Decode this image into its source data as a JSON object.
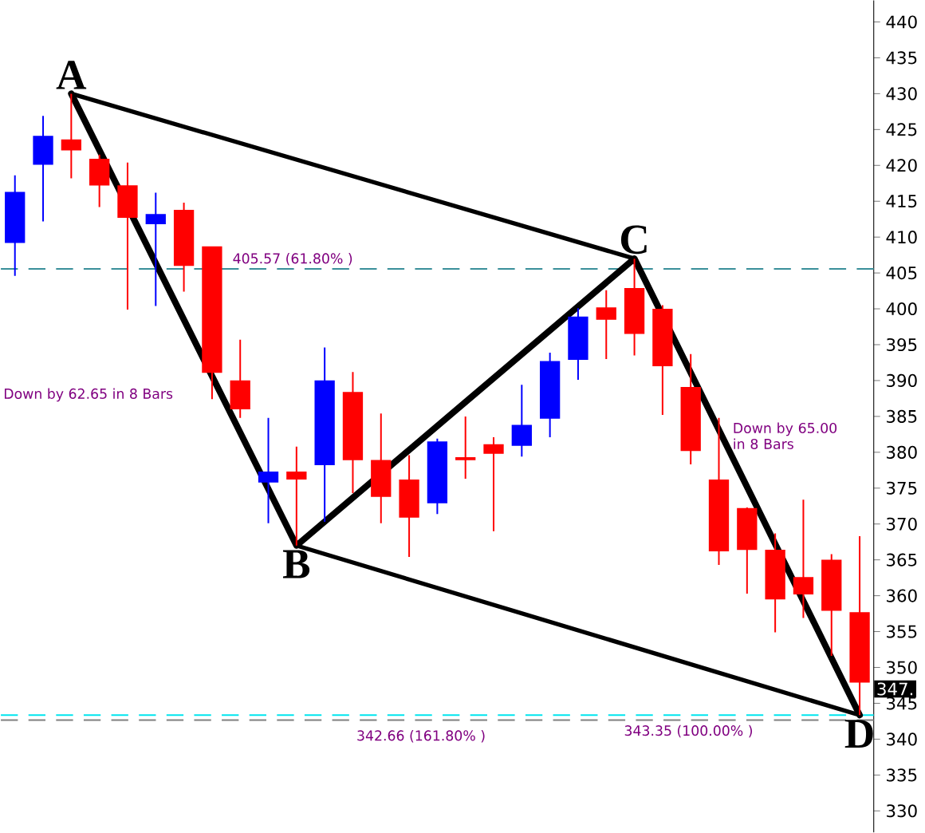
{
  "chart_data": {
    "type": "candlestick",
    "categories": [
      null,
      null,
      null,
      null,
      null,
      null,
      null,
      null,
      null,
      null,
      null,
      null,
      null,
      null,
      null,
      null,
      null,
      null,
      null,
      null,
      null,
      null,
      null,
      null,
      null,
      null,
      null,
      null,
      null,
      null,
      null
    ],
    "ohlc": [
      [
        409.3,
        418.6,
        404.6,
        416.2
      ],
      [
        420.2,
        426.9,
        412.2,
        424.0
      ],
      [
        423.5,
        430.0,
        418.2,
        422.2
      ],
      [
        420.8,
        421.5,
        414.2,
        417.3
      ],
      [
        417.1,
        420.4,
        399.9,
        412.8
      ],
      [
        411.9,
        416.2,
        400.4,
        413.1
      ],
      [
        413.7,
        414.8,
        402.4,
        406.1
      ],
      [
        408.6,
        408.6,
        387.4,
        391.2
      ],
      [
        389.9,
        395.7,
        384.8,
        386.1
      ],
      [
        375.9,
        384.8,
        370.1,
        377.2
      ],
      [
        377.2,
        380.8,
        367.0,
        376.3
      ],
      [
        378.3,
        394.6,
        370.3,
        389.9
      ],
      [
        388.3,
        391.2,
        374.3,
        379.0
      ],
      [
        378.8,
        385.4,
        370.1,
        373.9
      ],
      [
        376.1,
        379.6,
        365.4,
        371.0
      ],
      [
        373.0,
        381.9,
        371.4,
        381.4
      ],
      [
        379.2,
        385.0,
        376.3,
        379.0
      ],
      [
        381.0,
        382.1,
        369.0,
        379.9
      ],
      [
        381.0,
        389.4,
        379.4,
        383.7
      ],
      [
        384.8,
        393.9,
        382.1,
        392.6
      ],
      [
        393.0,
        400.1,
        390.1,
        398.8
      ],
      [
        400.1,
        402.6,
        393.0,
        398.6
      ],
      [
        402.8,
        407.0,
        393.5,
        396.6
      ],
      [
        399.9,
        400.5,
        385.2,
        392.1
      ],
      [
        389.0,
        393.7,
        378.3,
        380.3
      ],
      [
        376.1,
        384.8,
        364.3,
        366.3
      ],
      [
        372.1,
        372.3,
        360.3,
        366.5
      ],
      [
        366.3,
        368.7,
        354.9,
        359.6
      ],
      [
        362.5,
        373.4,
        356.9,
        360.3
      ],
      [
        364.9,
        365.8,
        351.6,
        358.0
      ],
      [
        357.6,
        368.3,
        343.35,
        348.0
      ]
    ],
    "colors": [
      "#0000ff",
      "#0000ff",
      "#ff0000",
      "#ff0000",
      "#ff0000",
      "#0000ff",
      "#ff0000",
      "#ff0000",
      "#ff0000",
      "#0000ff",
      "#ff0000",
      "#0000ff",
      "#ff0000",
      "#ff0000",
      "#ff0000",
      "#0000ff",
      "#ff0000",
      "#ff0000",
      "#0000ff",
      "#0000ff",
      "#0000ff",
      "#ff0000",
      "#ff0000",
      "#ff0000",
      "#ff0000",
      "#ff0000",
      "#ff0000",
      "#ff0000",
      "#ff0000",
      "#ff0000",
      "#ff0000"
    ],
    "series": [
      {
        "type": "line",
        "color": "#000000",
        "values": [
          null,
          null,
          430.0,
          null,
          null,
          null,
          null,
          null,
          null,
          null,
          367.0,
          null,
          null,
          null,
          null,
          null,
          null,
          null,
          null,
          null,
          null,
          null,
          407.0,
          null,
          null,
          null,
          null,
          null,
          null,
          null,
          343.35
        ]
      },
      {
        "type": "line",
        "color": "#000000",
        "values": [
          null,
          null,
          430.0,
          null,
          null,
          null,
          null,
          null,
          null,
          null,
          null,
          null,
          null,
          null,
          null,
          null,
          null,
          null,
          null,
          null,
          null,
          null,
          407.0,
          null,
          null,
          null,
          null,
          null,
          null,
          null,
          null
        ]
      },
      {
        "type": "line",
        "color": "#000000",
        "values": [
          null,
          null,
          null,
          null,
          null,
          null,
          null,
          null,
          null,
          null,
          367.0,
          null,
          null,
          null,
          null,
          null,
          null,
          null,
          null,
          null,
          null,
          null,
          null,
          null,
          null,
          null,
          null,
          null,
          null,
          null,
          343.35
        ]
      }
    ],
    "ylim": [
      327,
      443
    ],
    "yticks": [
      330,
      335,
      340,
      345,
      350,
      355,
      360,
      365,
      370,
      375,
      380,
      385,
      390,
      395,
      400,
      405,
      410,
      415,
      420,
      425,
      430,
      435,
      440
    ],
    "ref_lines": [
      {
        "axis": "y",
        "value": 405.57,
        "label": "405.57 (61.80% )",
        "color": "#3a8f9a",
        "line_style": "dashed"
      },
      {
        "axis": "y",
        "value": 343.35,
        "label": "343.35 (100.00% )",
        "color": "#00e5ee",
        "line_style": "dashed"
      },
      {
        "axis": "y",
        "value": 342.66,
        "label": "342.66 (161.80% )",
        "color": "#808080",
        "line_style": "dashed"
      }
    ],
    "annotations": [
      "A",
      "B",
      "C",
      "D",
      "Down by 62.65 in 8 Bars",
      "Down by 65.00 in 8 Bars",
      "347."
    ]
  }
}
